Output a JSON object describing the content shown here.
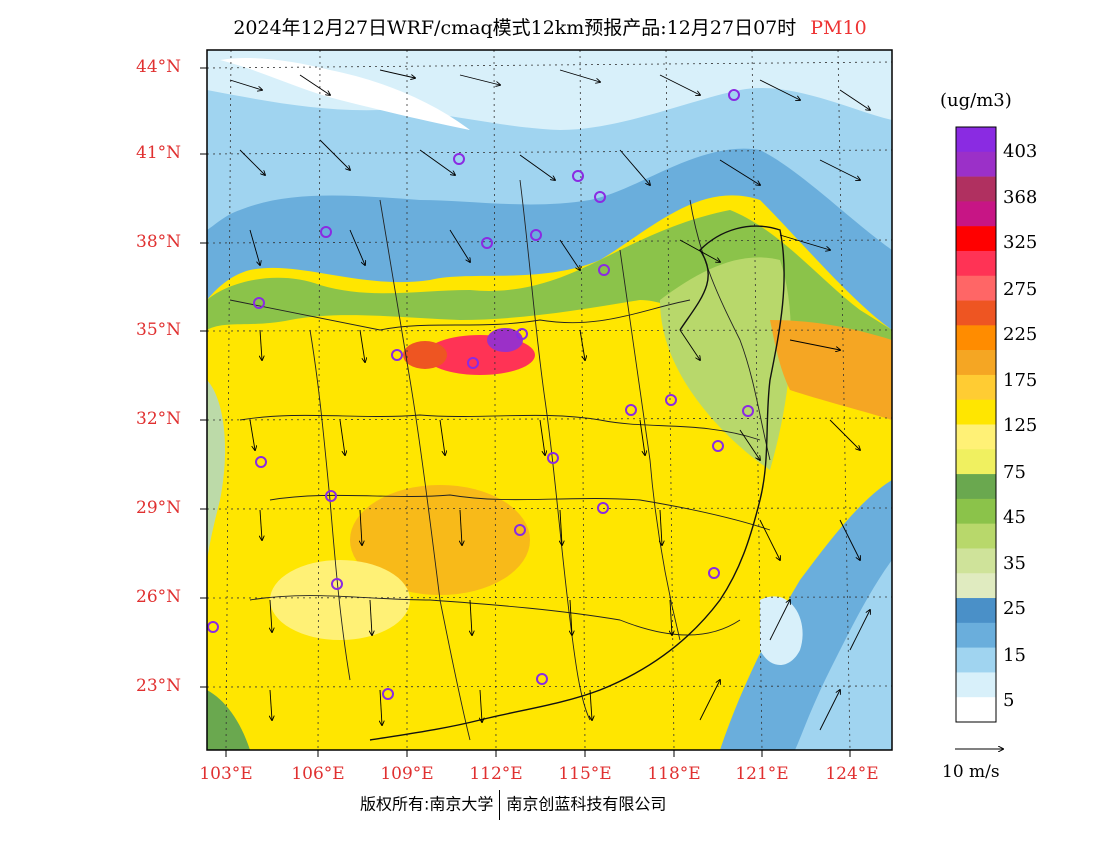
{
  "title": {
    "main": "2024年12月27日WRF/cmaq模式12km预报产品:12月27日07时",
    "pollutant": "PM10"
  },
  "axes": {
    "lat_labels": [
      "44°N",
      "41°N",
      "38°N",
      "35°N",
      "32°N",
      "29°N",
      "26°N",
      "23°N"
    ],
    "lon_labels": [
      "103°E",
      "106°E",
      "109°E",
      "112°E",
      "115°E",
      "118°E",
      "121°E",
      "124°E"
    ]
  },
  "legend": {
    "unit": "(ug/m3)",
    "labels": [
      "403",
      "368",
      "325",
      "275",
      "225",
      "175",
      "125",
      "75",
      "45",
      "35",
      "25",
      "15",
      "5"
    ],
    "colors": [
      "#8a2be2",
      "#9b30c8",
      "#b03060",
      "#c71585",
      "#ff0000",
      "#ff3355",
      "#ff6666",
      "#ee5522",
      "#ff8c00",
      "#f5a623",
      "#ffcc33",
      "#ffe600",
      "#fff176",
      "#f0f060",
      "#6aa84f",
      "#8bc34a",
      "#b8d86b",
      "#cfe39a",
      "#e0ebc0",
      "#4a90c8",
      "#6aaedc",
      "#a0d4f0",
      "#d8f0fa",
      "#ffffff"
    ]
  },
  "vector_scale": {
    "label": "10 m/s"
  },
  "copyright": {
    "left": "版权所有:南京大学",
    "right": "南京创蓝科技有限公司"
  },
  "colors": {
    "label_red": "#e03030",
    "base_yellow": "#ffe600",
    "orange_band": "#f5a623",
    "hotspot": "#ff3355",
    "green_band": "#8bc34a",
    "blue_band": "#6aaedc",
    "light_blue": "#d8f0fa",
    "station_circle": "#8a2be2"
  }
}
